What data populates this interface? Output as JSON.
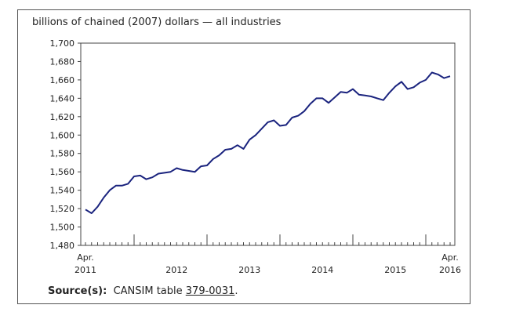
{
  "chart_data": {
    "type": "line",
    "ylabel": "billions of chained (2007) dollars — all industries",
    "ylim": [
      1480,
      1700
    ],
    "yticks": [
      1480,
      1500,
      1520,
      1540,
      1560,
      1580,
      1600,
      1620,
      1640,
      1660,
      1680,
      1700
    ],
    "ytick_labels": [
      "1,480",
      "1,500",
      "1,520",
      "1,540",
      "1,560",
      "1,580",
      "1,600",
      "1,620",
      "1,640",
      "1,660",
      "1,680",
      "1,700"
    ],
    "x_start": "2011-04",
    "x_end": "2016-04",
    "x_labels": [
      {
        "month": "2011-04",
        "top": "Apr.",
        "bottom": "2011"
      },
      {
        "month": "2012-07",
        "top": "",
        "bottom": "2012"
      },
      {
        "month": "2013-07",
        "top": "",
        "bottom": "2013"
      },
      {
        "month": "2014-07",
        "top": "",
        "bottom": "2014"
      },
      {
        "month": "2015-07",
        "top": "",
        "bottom": "2015"
      },
      {
        "month": "2016-04",
        "top": "Apr.",
        "bottom": "2016"
      }
    ],
    "major_ticks": [
      "2011-12",
      "2012-12",
      "2013-12",
      "2014-12",
      "2015-12"
    ],
    "grid": false,
    "line_color": "#1a237e",
    "series": [
      {
        "values": [
          1519,
          1515,
          1522,
          1532,
          1540,
          1545,
          1545,
          1547,
          1555,
          1556,
          1552,
          1554,
          1558,
          1559,
          1560,
          1564,
          1562,
          1561,
          1560,
          1566,
          1567,
          1574,
          1578,
          1584,
          1585,
          1589,
          1585,
          1595,
          1600,
          1607,
          1614,
          1616,
          1610,
          1611,
          1619,
          1621,
          1626,
          1634,
          1640,
          1640,
          1635,
          1641,
          1647,
          1646,
          1650,
          1644,
          1643,
          1642,
          1640,
          1638,
          1646,
          1653,
          1658,
          1650,
          1652,
          1657,
          1660,
          1668,
          1666,
          1662,
          1664
        ]
      }
    ]
  },
  "source": {
    "label": "Source(s):",
    "text": "CANSIM table",
    "link": "379-0031",
    "end": "."
  }
}
